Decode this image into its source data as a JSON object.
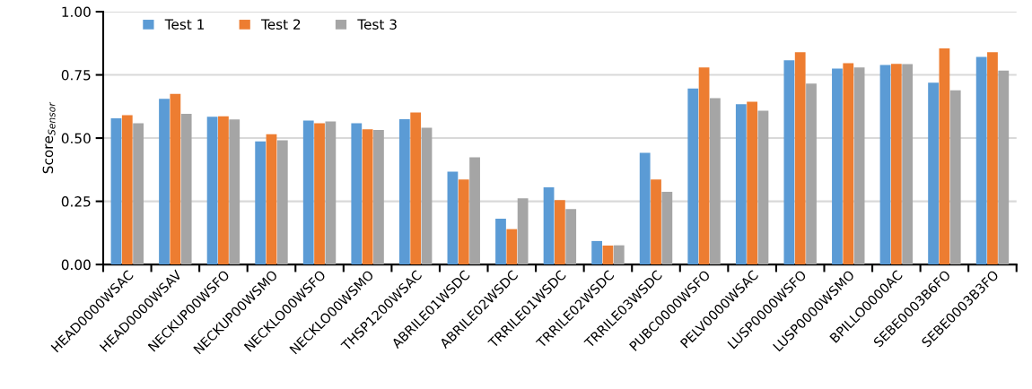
{
  "chart_data": {
    "type": "bar",
    "ylabel": "Score$_{Sensor}$",
    "categories": [
      "HEAD0000WSAC",
      "HEAD0000WSAV",
      "NECKUP00WSFO",
      "NECKUP00WSMO",
      "NECKLO00WSFO",
      "NECKLO00WSMO",
      "THSP1200WSAC",
      "ABRILE01WSDC",
      "ABRILE02WSDC",
      "TRRILE01WSDC",
      "TRRILE02WSDC",
      "TRRILE03WSDC",
      "PUBC0000WSFO",
      "PELV0000WSAC",
      "LUSP0000WSFO",
      "LUSP0000WSMO",
      "BPILLO0000AC",
      "SEBE0003B6FO",
      "SEBE0003B3FO"
    ],
    "series": [
      {
        "name": "Test 1",
        "color": "#5b9bd5",
        "values": [
          0.578,
          0.655,
          0.584,
          0.487,
          0.569,
          0.559,
          0.575,
          0.367,
          0.181,
          0.305,
          0.093,
          0.442,
          0.696,
          0.634,
          0.808,
          0.775,
          0.789,
          0.719,
          0.821
        ]
      },
      {
        "name": "Test 2",
        "color": "#ed7d31",
        "values": [
          0.591,
          0.675,
          0.586,
          0.515,
          0.559,
          0.535,
          0.601,
          0.336,
          0.14,
          0.255,
          0.075,
          0.336,
          0.779,
          0.644,
          0.84,
          0.796,
          0.794,
          0.855,
          0.84
        ]
      },
      {
        "name": "Test 3",
        "color": "#a5a5a5",
        "values": [
          0.559,
          0.596,
          0.574,
          0.491,
          0.566,
          0.532,
          0.541,
          0.424,
          0.262,
          0.219,
          0.076,
          0.288,
          0.658,
          0.608,
          0.716,
          0.779,
          0.793,
          0.689,
          0.767
        ]
      }
    ],
    "ylim": [
      0,
      1
    ],
    "yticks": [
      {
        "value": 0,
        "label": "0.00"
      },
      {
        "value": 0.25,
        "label": "0.25"
      },
      {
        "value": 0.5,
        "label": "0.50"
      },
      {
        "value": 0.75,
        "label": "0.75"
      },
      {
        "value": 1,
        "label": "1.00"
      }
    ],
    "grid": "y",
    "legend": "top left"
  }
}
